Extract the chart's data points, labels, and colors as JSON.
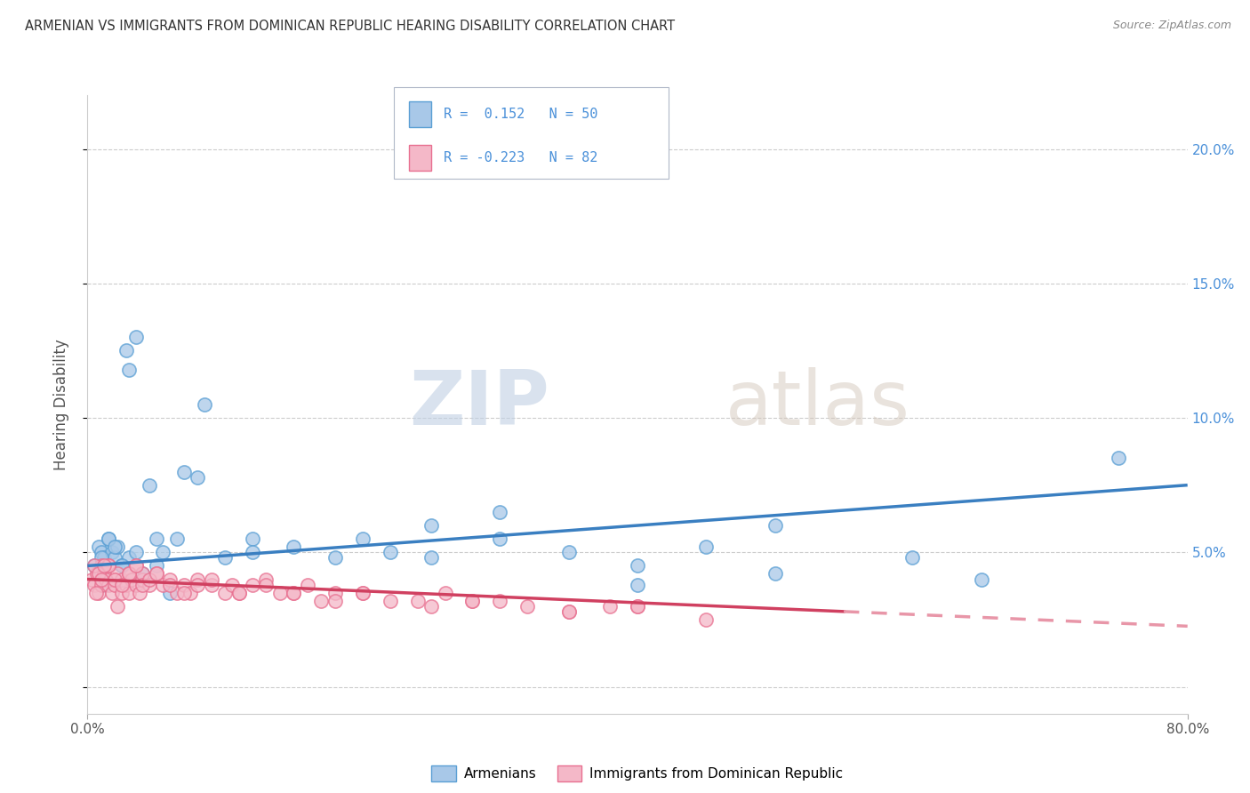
{
  "title": "ARMENIAN VS IMMIGRANTS FROM DOMINICAN REPUBLIC HEARING DISABILITY CORRELATION CHART",
  "source": "Source: ZipAtlas.com",
  "ylabel": "Hearing Disability",
  "watermark_zip": "ZIP",
  "watermark_atlas": "atlas",
  "armenian_color": "#a8c8e8",
  "armenian_edge_color": "#5a9fd4",
  "dominican_color": "#f4b8c8",
  "dominican_edge_color": "#e87090",
  "armenian_line_color": "#3a7fc1",
  "dominican_line_color": "#d04060",
  "dominican_dash_color": "#e896a8",
  "background_color": "#ffffff",
  "grid_color": "#cccccc",
  "tick_color": "#4a90d9",
  "xlim": [
    0.0,
    80.0
  ],
  "ylim": [
    -1.0,
    22.0
  ],
  "yticks": [
    0.0,
    5.0,
    10.0,
    15.0,
    20.0
  ],
  "ytick_labels": [
    "",
    "5.0%",
    "10.0%",
    "15.0%",
    "20.0%"
  ],
  "arm_line_y0": 4.5,
  "arm_line_y80": 7.5,
  "dom_line_y0": 4.0,
  "dom_line_y55": 2.8,
  "dom_dash_x1": 55.0,
  "dom_dash_x2": 80.0,
  "armenian_x": [
    0.5,
    0.8,
    1.0,
    1.2,
    1.5,
    1.8,
    2.0,
    2.2,
    2.5,
    2.8,
    3.0,
    3.5,
    4.0,
    4.5,
    5.0,
    6.0,
    7.0,
    8.5,
    10.0,
    12.0,
    15.0,
    18.0,
    22.0,
    25.0,
    30.0,
    35.0,
    40.0,
    45.0,
    50.0,
    75.0,
    1.0,
    1.5,
    2.0,
    3.0,
    4.0,
    5.5,
    6.5,
    8.0,
    12.0,
    20.0,
    25.0,
    30.0,
    40.0,
    50.0,
    60.0,
    65.0,
    1.2,
    2.5,
    3.5,
    5.0
  ],
  "armenian_y": [
    4.5,
    5.2,
    5.0,
    4.8,
    5.5,
    5.0,
    4.8,
    5.2,
    4.5,
    12.5,
    11.8,
    13.0,
    4.0,
    7.5,
    4.5,
    3.5,
    8.0,
    10.5,
    4.8,
    5.5,
    5.2,
    4.8,
    5.0,
    6.0,
    5.5,
    5.0,
    4.5,
    5.2,
    6.0,
    8.5,
    4.8,
    5.5,
    5.2,
    4.8,
    4.2,
    5.0,
    5.5,
    7.8,
    5.0,
    5.5,
    4.8,
    6.5,
    3.8,
    4.2,
    4.8,
    4.0,
    3.8,
    4.5,
    5.0,
    5.5
  ],
  "dominican_x": [
    0.3,
    0.5,
    0.7,
    0.8,
    1.0,
    1.0,
    1.2,
    1.3,
    1.5,
    1.5,
    1.8,
    2.0,
    2.0,
    2.2,
    2.5,
    2.5,
    2.8,
    3.0,
    3.0,
    3.2,
    3.5,
    3.5,
    3.8,
    4.0,
    4.0,
    4.5,
    5.0,
    5.5,
    6.0,
    6.5,
    7.0,
    7.5,
    8.0,
    9.0,
    10.0,
    10.5,
    11.0,
    12.0,
    13.0,
    14.0,
    15.0,
    16.0,
    17.0,
    18.0,
    20.0,
    22.0,
    24.0,
    26.0,
    28.0,
    30.0,
    32.0,
    35.0,
    38.0,
    40.0,
    0.5,
    0.8,
    1.0,
    1.5,
    2.0,
    2.5,
    3.0,
    3.5,
    4.0,
    4.5,
    5.0,
    6.0,
    7.0,
    8.0,
    9.0,
    11.0,
    13.0,
    15.0,
    18.0,
    20.0,
    25.0,
    28.0,
    35.0,
    40.0,
    45.0,
    0.6,
    1.2,
    2.2
  ],
  "dominican_y": [
    4.0,
    3.8,
    4.2,
    3.5,
    4.5,
    3.8,
    4.2,
    4.0,
    3.8,
    4.5,
    3.5,
    4.0,
    3.8,
    4.2,
    3.5,
    4.0,
    3.8,
    4.2,
    3.5,
    4.0,
    3.8,
    4.5,
    3.5,
    4.0,
    4.2,
    3.8,
    4.2,
    3.8,
    4.0,
    3.5,
    3.8,
    3.5,
    4.0,
    3.8,
    3.5,
    3.8,
    3.5,
    3.8,
    4.0,
    3.5,
    3.5,
    3.8,
    3.2,
    3.5,
    3.5,
    3.2,
    3.2,
    3.5,
    3.2,
    3.2,
    3.0,
    2.8,
    3.0,
    3.0,
    4.5,
    4.2,
    4.0,
    4.5,
    4.0,
    3.8,
    4.2,
    4.5,
    3.8,
    4.0,
    4.2,
    3.8,
    3.5,
    3.8,
    4.0,
    3.5,
    3.8,
    3.5,
    3.2,
    3.5,
    3.0,
    3.2,
    2.8,
    3.0,
    2.5,
    3.5,
    4.5,
    3.0
  ]
}
